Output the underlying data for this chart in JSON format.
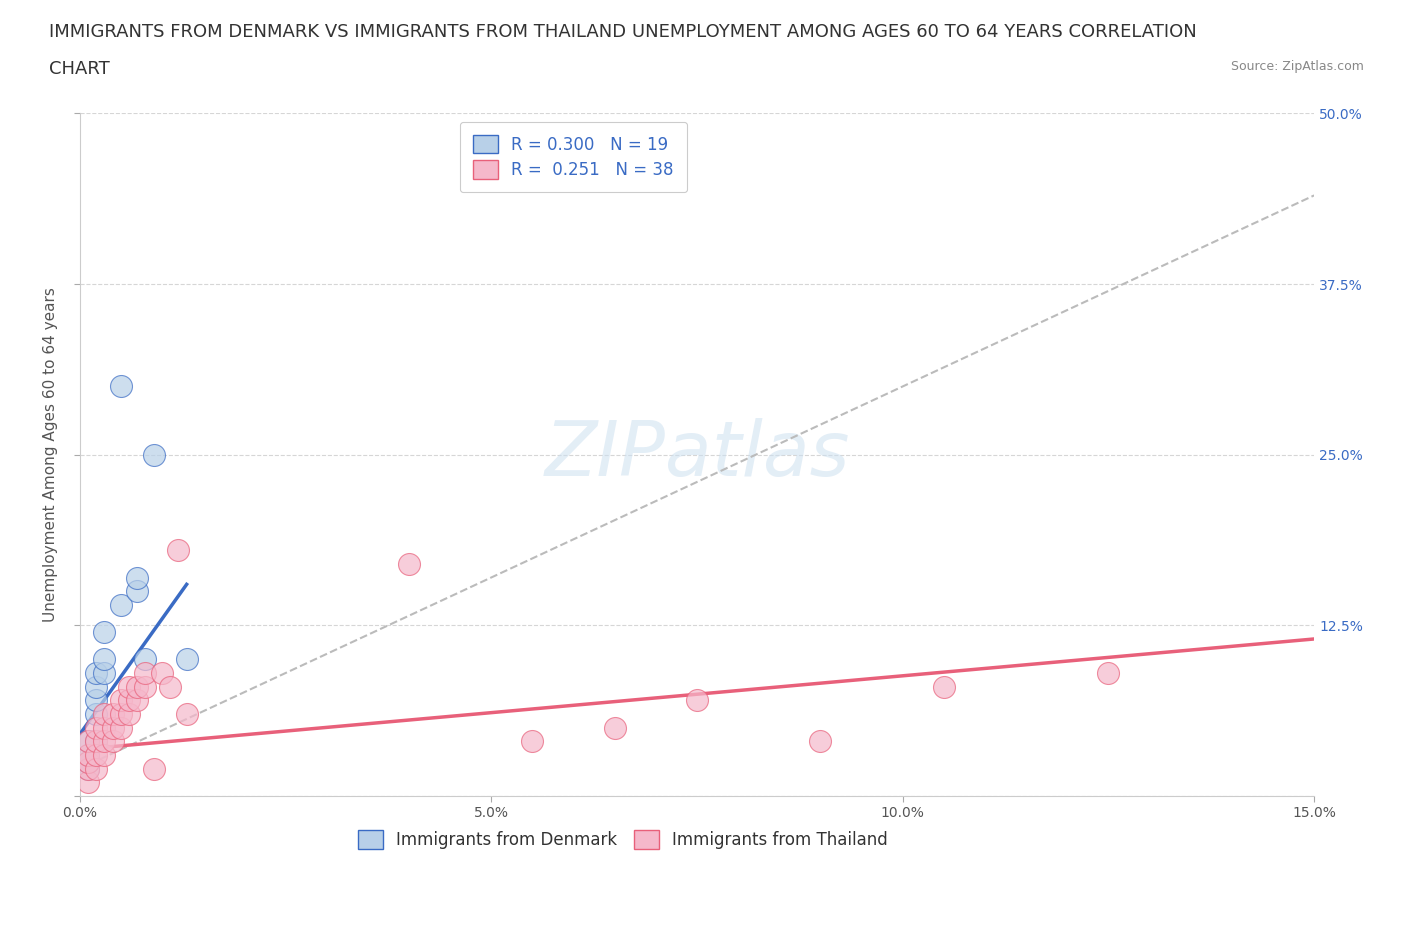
{
  "title_line1": "IMMIGRANTS FROM DENMARK VS IMMIGRANTS FROM THAILAND UNEMPLOYMENT AMONG AGES 60 TO 64 YEARS CORRELATION",
  "title_line2": "CHART",
  "source": "Source: ZipAtlas.com",
  "ylabel": "Unemployment Among Ages 60 to 64 years",
  "denmark_R": 0.3,
  "denmark_N": 19,
  "thailand_R": 0.251,
  "thailand_N": 38,
  "denmark_color": "#b8d0e8",
  "thailand_color": "#f5b8cb",
  "denmark_line_color": "#3a6bc4",
  "thailand_line_color": "#e8607a",
  "gray_dashed_color": "#bbbbbb",
  "xlim": [
    0,
    0.15
  ],
  "ylim": [
    0,
    0.5
  ],
  "xticks": [
    0.0,
    0.05,
    0.1,
    0.15
  ],
  "xtick_labels": [
    "0.0%",
    "5.0%",
    "10.0%",
    "15.0%"
  ],
  "yticks": [
    0.0,
    0.125,
    0.25,
    0.375,
    0.5
  ],
  "ytick_right_labels": [
    "",
    "12.5%",
    "25.0%",
    "37.5%",
    "50.0%"
  ],
  "denmark_x": [
    0.001,
    0.001,
    0.001,
    0.001,
    0.002,
    0.002,
    0.002,
    0.002,
    0.002,
    0.003,
    0.003,
    0.003,
    0.005,
    0.007,
    0.007,
    0.008,
    0.009,
    0.013,
    0.005
  ],
  "denmark_y": [
    0.02,
    0.025,
    0.03,
    0.04,
    0.04,
    0.06,
    0.07,
    0.08,
    0.09,
    0.09,
    0.1,
    0.12,
    0.14,
    0.15,
    0.16,
    0.1,
    0.25,
    0.1,
    0.3
  ],
  "thailand_x": [
    0.001,
    0.001,
    0.001,
    0.001,
    0.001,
    0.002,
    0.002,
    0.002,
    0.002,
    0.003,
    0.003,
    0.003,
    0.003,
    0.004,
    0.004,
    0.004,
    0.005,
    0.005,
    0.005,
    0.006,
    0.006,
    0.006,
    0.007,
    0.007,
    0.008,
    0.008,
    0.009,
    0.01,
    0.011,
    0.012,
    0.013,
    0.04,
    0.055,
    0.065,
    0.075,
    0.09,
    0.105,
    0.125
  ],
  "thailand_y": [
    0.01,
    0.02,
    0.025,
    0.03,
    0.04,
    0.02,
    0.03,
    0.04,
    0.05,
    0.03,
    0.04,
    0.05,
    0.06,
    0.04,
    0.05,
    0.06,
    0.05,
    0.06,
    0.07,
    0.06,
    0.07,
    0.08,
    0.07,
    0.08,
    0.08,
    0.09,
    0.02,
    0.09,
    0.08,
    0.18,
    0.06,
    0.17,
    0.04,
    0.05,
    0.07,
    0.04,
    0.08,
    0.09
  ],
  "watermark": "ZIPatlas",
  "legend_items": [
    "Immigrants from Denmark",
    "Immigrants from Thailand"
  ],
  "title_fontsize": 13,
  "axis_label_fontsize": 11,
  "tick_fontsize": 10,
  "legend_fontsize": 12,
  "denmark_trend_x0": 0.0,
  "denmark_trend_y0": 0.045,
  "denmark_trend_x1": 0.013,
  "denmark_trend_y1": 0.155,
  "thailand_trend_x0": 0.0,
  "thailand_trend_y0": 0.034,
  "thailand_trend_x1": 0.15,
  "thailand_trend_y1": 0.115,
  "gray_trend_x0": 0.0,
  "gray_trend_y0": 0.02,
  "gray_trend_x1": 0.15,
  "gray_trend_y1": 0.44
}
